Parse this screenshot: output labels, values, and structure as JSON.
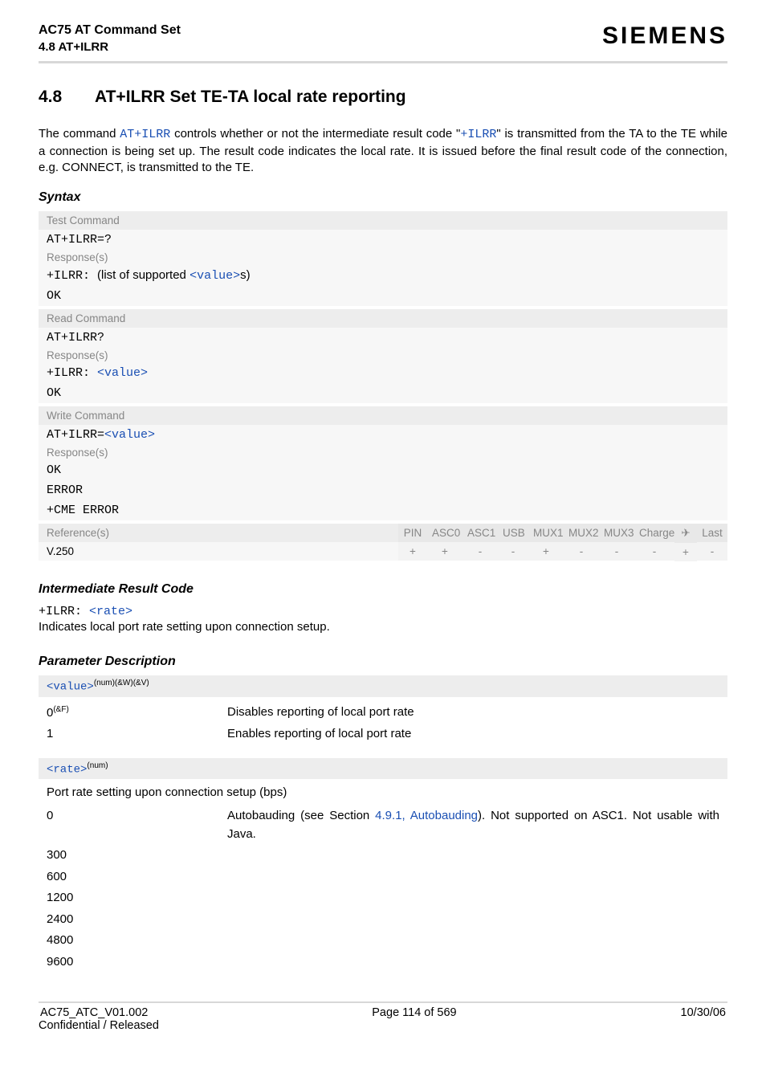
{
  "header": {
    "doc_title": "AC75 AT Command Set",
    "doc_subtitle": "4.8 AT+ILRR",
    "brand": "SIEMENS"
  },
  "section": {
    "number": "4.8",
    "title": "AT+ILRR   Set TE-TA local rate reporting"
  },
  "intro": {
    "pre": "The command ",
    "cmd1": "AT+ILRR",
    "mid1": " controls whether or not the intermediate result code \"",
    "cmd2": "+ILRR",
    "post": "\" is transmitted from the TA to the TE while a connection is being set up. The result code indicates the local rate. It is issued before the final result code of the connection, e.g. CONNECT, is transmitted to the TE."
  },
  "syntax_label": "Syntax",
  "test_cmd": {
    "label": "Test Command",
    "cmd": "AT+ILRR=?",
    "resp_label": "Response(s)",
    "resp_prefix": "+ILRR: ",
    "resp_text": "(list of supported ",
    "resp_val": "<value>",
    "resp_suffix": "s)",
    "ok": "OK"
  },
  "read_cmd": {
    "label": "Read Command",
    "cmd": "AT+ILRR?",
    "resp_label": "Response(s)",
    "resp_prefix": "+ILRR: ",
    "resp_val": "<value>",
    "ok": "OK"
  },
  "write_cmd": {
    "label": "Write Command",
    "cmd_prefix": "AT+ILRR=",
    "cmd_val": "<value>",
    "resp_label": "Response(s)",
    "ok": "OK",
    "error": "ERROR",
    "cme": "+CME ERROR"
  },
  "ref": {
    "label": "Reference(s)",
    "value": "V.250",
    "cols": [
      "PIN",
      "ASC0",
      "ASC1",
      "USB",
      "MUX1",
      "MUX2",
      "MUX3",
      "Charge",
      "✈",
      "Last"
    ],
    "widths": [
      36,
      44,
      44,
      38,
      44,
      44,
      44,
      50,
      28,
      38
    ],
    "vals": [
      "+",
      "+",
      "-",
      "-",
      "+",
      "-",
      "-",
      "-",
      "+",
      "-"
    ]
  },
  "irc": {
    "heading": "Intermediate Result Code",
    "prefix": "+ILRR: ",
    "param": "<rate>",
    "desc": "Indicates local port rate setting upon connection setup."
  },
  "params": {
    "heading": "Parameter Description",
    "value_param": "<value>",
    "value_sup": "(num)(&W)(&V)",
    "rows": [
      {
        "key": "0",
        "keysup": "(&F)",
        "desc": "Disables reporting of local port rate"
      },
      {
        "key": "1",
        "keysup": "",
        "desc": "Enables reporting of local port rate"
      }
    ],
    "rate_param": "<rate>",
    "rate_sup": "(num)",
    "rate_intro": "Port rate setting upon connection setup (bps)",
    "rate_rows": [
      {
        "key": "0",
        "pre": "Autobauding (see Section ",
        "link": "4.9.1, Autobauding",
        "post": "). Not supported on ASC1. Not usable with Java."
      },
      {
        "key": "300"
      },
      {
        "key": "600"
      },
      {
        "key": "1200"
      },
      {
        "key": "2400"
      },
      {
        "key": "4800"
      },
      {
        "key": "9600"
      }
    ]
  },
  "footer": {
    "left1": "AC75_ATC_V01.002",
    "left2": "Confidential / Released",
    "center": "Page 114 of 569",
    "right": "10/30/06"
  }
}
